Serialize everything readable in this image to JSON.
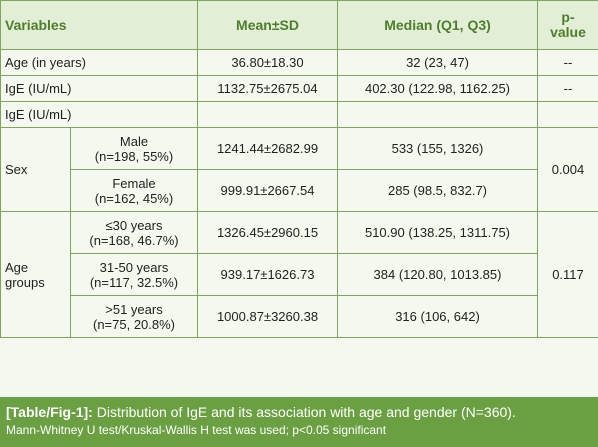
{
  "table": {
    "headers": {
      "variables": "Variables",
      "mean": "Mean±SD",
      "median": "Median (Q1, Q3)",
      "pvalue_1": "p-",
      "pvalue_2": "value"
    },
    "rows": [
      {
        "variable": "Age (in years)",
        "mean": "36.80±18.30",
        "median": "32 (23, 47)",
        "p": "--"
      },
      {
        "variable": "IgE (IU/mL)",
        "mean": "1132.75±2675.04",
        "median": "402.30 (122.98, 1162.25)",
        "p": "--"
      },
      {
        "variable": "IgE (IU/mL)",
        "mean": "",
        "median": "",
        "p": ""
      }
    ],
    "sex": {
      "label": "Sex",
      "p": "0.004",
      "groups": [
        {
          "name": "Male",
          "count": "(n=198, 55%)",
          "mean": "1241.44±2682.99",
          "median": "533 (155, 1326)"
        },
        {
          "name": "Female",
          "count": "(n=162, 45%)",
          "mean": "999.91±2667.54",
          "median": "285 (98.5, 832.7)"
        }
      ]
    },
    "age_groups": {
      "label_1": "Age",
      "label_2": "groups",
      "p": "0.117",
      "groups": [
        {
          "name": "≤30 years",
          "count": "(n=168, 46.7%)",
          "mean": "1326.45±2960.15",
          "median": "510.90 (138.25, 1311.75)"
        },
        {
          "name": "31-50 years",
          "count": "(n=117, 32.5%)",
          "mean": "939.17±1626.73",
          "median": "384 (120.80, 1013.85)"
        },
        {
          "name": ">51 years",
          "count": "(n=75, 20.8%)",
          "mean": "1000.87±3260.38",
          "median": "316 (106, 642)"
        }
      ]
    }
  },
  "caption": {
    "label": "[Table/Fig-1]:",
    "text": "Distribution of IgE and its association with age and gender (N=360).",
    "note": "Mann-Whitney U test/Kruskal-Wallis H test was used; p<0.05 significant"
  },
  "colors": {
    "background": "#f4f8ee",
    "header_text": "#4e7e2c",
    "border": "#7fa55d",
    "caption_bg": "#6aa042"
  }
}
